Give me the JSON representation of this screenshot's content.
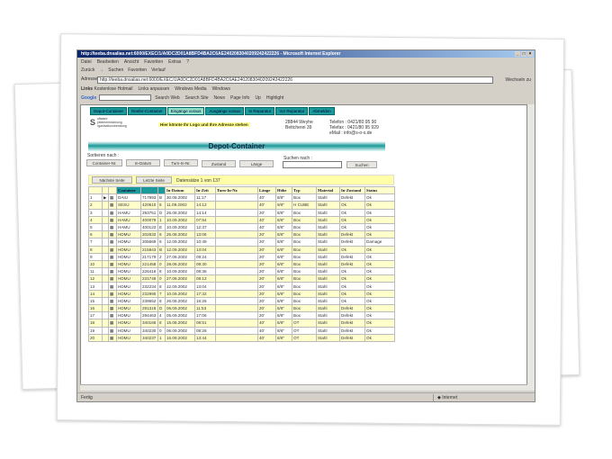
{
  "window": {
    "title": "http://teeba.dnsalias.net:6000/EXEC/1/A0DC2D01A8BFD4BA2C6AE2402083040209242422226 - Microsoft Internet Explorer"
  },
  "menu": [
    "Datei",
    "Bearbeiten",
    "Ansicht",
    "Favoriten",
    "Extras",
    "?"
  ],
  "toolbar": [
    "Zurück",
    "→",
    "Suchen",
    "Favoriten",
    "Verlauf"
  ],
  "address": {
    "label": "Adresse",
    "value": "http://teeba.dnsalias.net:6000/EXEC/1/A0DC2D01A8BFD4BA2C6AE2402083040209242422226",
    "go": "Wechseln zu"
  },
  "links": {
    "label": "Links",
    "items": [
      "Kostenlose Hotmail",
      "Links anpassen",
      "Windows Media",
      "Windows"
    ]
  },
  "google": {
    "logo": "Google",
    "items": [
      "Search Web",
      "Search Site",
      "News",
      "Page Info",
      "Up",
      "Highlight"
    ]
  },
  "tabs": [
    {
      "label": "Depot-Container",
      "active": false
    },
    {
      "label": "Reefer-Container",
      "active": false
    },
    {
      "label": "Eingänge voraus",
      "active": true
    },
    {
      "label": "Ausgänge voraus",
      "active": false
    },
    {
      "label": "In Reparatur",
      "active": false
    },
    {
      "label": "Vor Reparatur",
      "active": false
    },
    {
      "label": "Abmelden",
      "active": false
    }
  ],
  "company": {
    "logo": "S",
    "logo_lines": [
      "oftware",
      "ystementwicklung",
      "rganisationsberatung"
    ],
    "ad": "Hier könnte Ihr Logo und Ihre Adresse stehen",
    "address": [
      "28844 Weyhe",
      "Bettcherei 39"
    ],
    "contact": [
      "Telefon : 0421/80 95 90",
      "Telefax : 0421/80 95 929",
      "eMail : info@s-o-s.de"
    ]
  },
  "page": {
    "title": "Depot-Container",
    "sort_label": "Sortieren nach :",
    "sort_buttons": [
      "Container-Nr.",
      "In-Datum",
      "Turn-In-Nr.",
      "Zustand",
      "Länge"
    ],
    "search_label": "Suchen nach :",
    "search_value": "",
    "search_button": "Suchen",
    "next_page": "Nächste Seite",
    "last_page": "Letzte Seite",
    "record_count": "Datensätze 1 von 137"
  },
  "table": {
    "headers": [
      "",
      "",
      "",
      "Container",
      "",
      "",
      "In-Datum",
      "In-Zeit",
      "Turn-In-Nr.",
      "Länge",
      "Höhe",
      "Typ",
      "Material",
      "In-Zustand",
      "Status"
    ],
    "rows": [
      [
        "1",
        "DAIU",
        "717993",
        "B",
        "30.08.2002",
        "11:17",
        "",
        "40'",
        "8/6\"",
        "Box",
        "Stahl",
        "Defekt",
        "Ok"
      ],
      [
        "2",
        "SESU",
        "420610",
        "6",
        "11.09.2002",
        "14:12",
        "",
        "40'",
        "9/6\"",
        "H CUBE",
        "Stahl",
        "Ok",
        "Ok"
      ],
      [
        "3",
        "HAMU",
        "293751",
        "D",
        "26.08.2002",
        "14:14",
        "",
        "20'",
        "8/6\"",
        "Box",
        "Stahl",
        "Ok",
        "Ok"
      ],
      [
        "4",
        "HAMU",
        "400079",
        "1",
        "10.09.2002",
        "07:54",
        "",
        "40'",
        "8/6\"",
        "Box",
        "Stahl",
        "Ok",
        "Ok"
      ],
      [
        "5",
        "HAMU",
        "400122",
        "E",
        "10.09.2002",
        "12:37",
        "",
        "40'",
        "8/6\"",
        "Box",
        "Stahl",
        "Ok",
        "Ok"
      ],
      [
        "6",
        "HDMU",
        "202632",
        "6",
        "26.08.2002",
        "13:06",
        "",
        "20'",
        "8/6\"",
        "Box",
        "Stahl",
        "Defekt",
        "Ok"
      ],
      [
        "7",
        "HDMU",
        "205669",
        "6",
        "12.09.2002",
        "10:49",
        "",
        "20'",
        "8/6\"",
        "Box",
        "Stahl",
        "Defekt",
        "Damage"
      ],
      [
        "8",
        "HDMU",
        "215843",
        "B",
        "12.09.2002",
        "13:04",
        "",
        "20'",
        "8/6\"",
        "Box",
        "Stahl",
        "Ok",
        "Ok"
      ],
      [
        "9",
        "HDMU",
        "217179",
        "2",
        "27.08.2002",
        "09:24",
        "",
        "20'",
        "8/6\"",
        "Box",
        "Stahl",
        "Defekt",
        "Ok"
      ],
      [
        "10",
        "HDMU",
        "221458",
        "0",
        "28.08.2002",
        "09:30",
        "",
        "20'",
        "8/6\"",
        "Box",
        "Stahl",
        "Defekt",
        "Ok"
      ],
      [
        "11",
        "HDMU",
        "226416",
        "8",
        "10.09.2002",
        "08:36",
        "",
        "20'",
        "8/6\"",
        "Box",
        "Stahl",
        "Ok",
        "Ok"
      ],
      [
        "12",
        "HDMU",
        "231746",
        "0",
        "27.08.2002",
        "08:12",
        "",
        "20'",
        "8/6\"",
        "Box",
        "Stahl",
        "Ok",
        "Ok"
      ],
      [
        "13",
        "HDMU",
        "232234",
        "8",
        "12.09.2002",
        "13:04",
        "",
        "20'",
        "8/6\"",
        "Box",
        "Stahl",
        "Ok",
        "Ok"
      ],
      [
        "14",
        "HDMU",
        "232990",
        "7",
        "10.09.2002",
        "17:32",
        "",
        "20'",
        "8/6\"",
        "Box",
        "Stahl",
        "Ok",
        "Ok"
      ],
      [
        "15",
        "HDMU",
        "239652",
        "8",
        "26.08.2002",
        "16:26",
        "",
        "20'",
        "8/6\"",
        "Box",
        "Stahl",
        "Ok",
        "Ok"
      ],
      [
        "16",
        "HDMU",
        "291318",
        "D",
        "06.09.2002",
        "11:53",
        "",
        "20'",
        "8/6\"",
        "Box",
        "Stahl",
        "Defekt",
        "Ok"
      ],
      [
        "17",
        "HDMU",
        "294463",
        "4",
        "05.09.2002",
        "17:06",
        "",
        "20'",
        "8/6\"",
        "Box",
        "Stahl",
        "Defekt",
        "Ok"
      ],
      [
        "18",
        "HDMU",
        "340166",
        "8",
        "15.08.2002",
        "08:51",
        "",
        "40'",
        "8/6\"",
        "OT",
        "Stahl",
        "Defekt",
        "Ok"
      ],
      [
        "19",
        "HDMU",
        "340230",
        "0",
        "06.09.2002",
        "08:28",
        "",
        "40'",
        "8/6\"",
        "OT",
        "Stahl",
        "Defekt",
        "Ok"
      ],
      [
        "20",
        "HDMU",
        "340237",
        "1",
        "16.08.2002",
        "13:44",
        "",
        "40'",
        "8/6\"",
        "OT",
        "Stahl",
        "Defekt",
        "Ok"
      ]
    ]
  },
  "status": {
    "text": "Fertig",
    "zone": "Internet"
  },
  "colors": {
    "tab": "#1a9a9a",
    "tab_active": "#8fe0c8",
    "row_alt": "#ffffcc",
    "title_bar": "#0a246a"
  }
}
